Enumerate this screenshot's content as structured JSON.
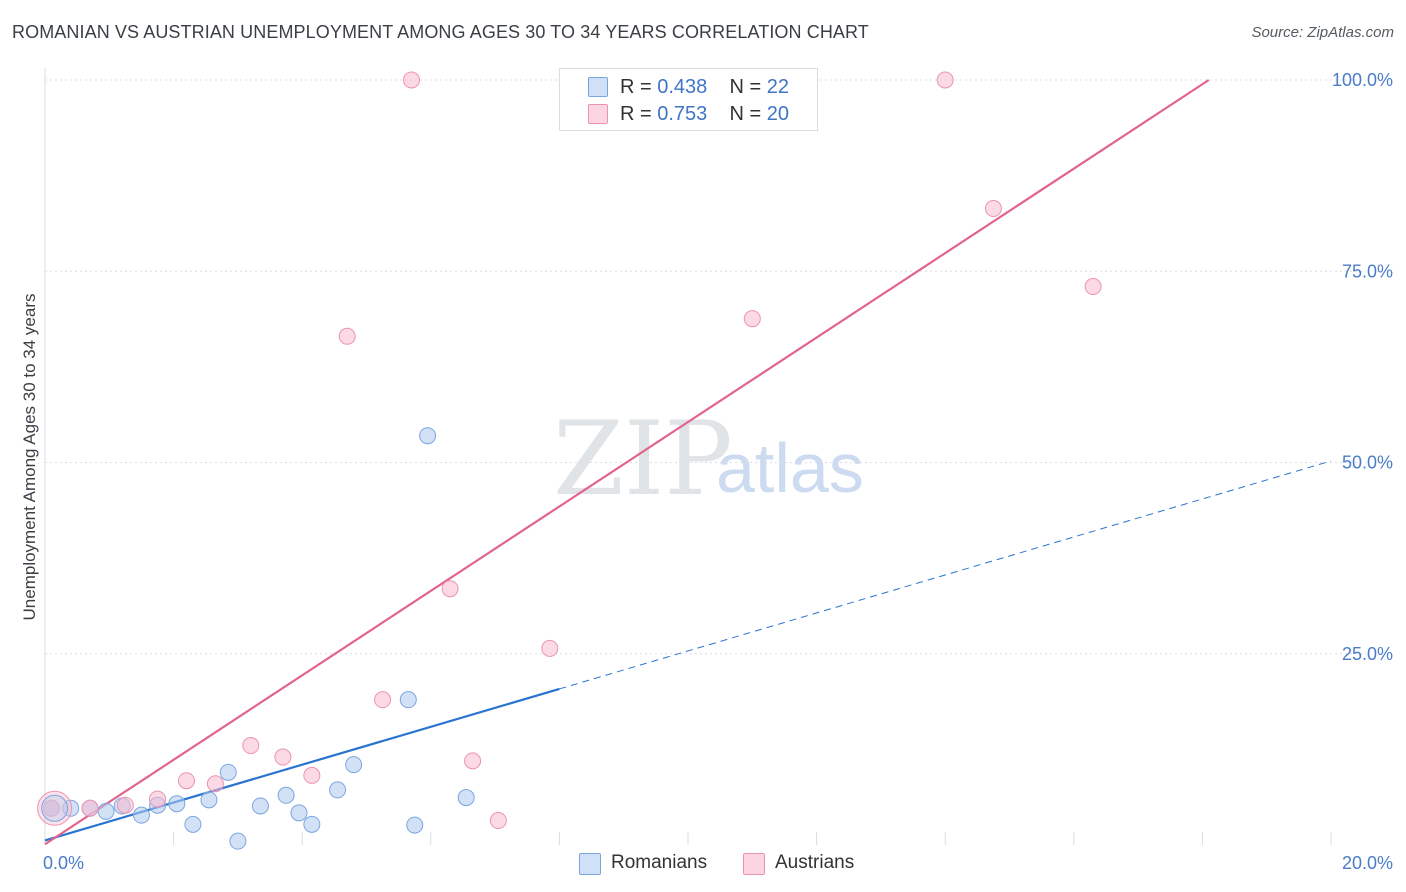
{
  "header": {
    "title": "ROMANIAN VS AUSTRIAN UNEMPLOYMENT AMONG AGES 30 TO 34 YEARS CORRELATION CHART",
    "source": "Source: ZipAtlas.com"
  },
  "watermark": {
    "zip": "ZIP",
    "atlas": "atlas"
  },
  "legend": {
    "rows": [
      {
        "r_label": "R = ",
        "r_value": "0.438",
        "n_label": "N = ",
        "n_value": "22",
        "color": "#aec9ef"
      },
      {
        "r_label": "R = ",
        "r_value": "0.753",
        "n_label": "N = ",
        "n_value": "20",
        "color": "#f7bcd0"
      }
    ]
  },
  "bottom_legend": {
    "romanians": "Romanians",
    "austrians": "Austrians"
  },
  "colors": {
    "blue_fill": "#aec9ef",
    "blue_stroke": "#7aa6e0",
    "blue_line": "#2a74d1",
    "pink_fill": "#f7bcd0",
    "pink_stroke": "#ec93b1",
    "pink_line": "#e2648e",
    "grid": "#d9dde2",
    "tick": "#4a7cc9"
  },
  "chart_data": {
    "type": "scatter",
    "title": "ROMANIAN VS AUSTRIAN UNEMPLOYMENT AMONG AGES 30 TO 34 YEARS CORRELATION CHART",
    "xlabel": "",
    "ylabel": "Unemployment Among Ages 30 to 34 years",
    "xlim": [
      0,
      20
    ],
    "ylim": [
      0,
      100
    ],
    "x_tick_labels": [
      "0.0%",
      "20.0%"
    ],
    "y_tick_labels": [
      "100.0%",
      "75.0%",
      "50.0%",
      "25.0%"
    ],
    "y_tick_values": [
      100,
      75,
      50,
      25
    ],
    "grid": true,
    "series": [
      {
        "name": "Romanians",
        "r": 0.438,
        "n": 22,
        "points": [
          [
            0.1,
            4.8
          ],
          [
            0.4,
            4.8
          ],
          [
            0.7,
            4.8
          ],
          [
            0.95,
            4.4
          ],
          [
            1.2,
            5.1
          ],
          [
            1.5,
            3.9
          ],
          [
            1.75,
            5.2
          ],
          [
            2.05,
            5.4
          ],
          [
            2.3,
            2.7
          ],
          [
            2.55,
            5.9
          ],
          [
            2.85,
            9.5
          ],
          [
            3.0,
            0.5
          ],
          [
            3.35,
            5.1
          ],
          [
            3.75,
            6.5
          ],
          [
            3.95,
            4.2
          ],
          [
            4.15,
            2.7
          ],
          [
            4.55,
            7.2
          ],
          [
            4.8,
            10.5
          ],
          [
            5.65,
            19.0
          ],
          [
            5.75,
            2.6
          ],
          [
            5.95,
            53.5
          ],
          [
            6.55,
            6.2
          ]
        ],
        "trend_solid": [
          [
            0,
            0.6
          ],
          [
            8,
            20.4
          ]
        ],
        "trend_dashed": [
          [
            8,
            20.4
          ],
          [
            20,
            50.2
          ]
        ]
      },
      {
        "name": "Austrians",
        "r": 0.753,
        "n": 20,
        "points": [
          [
            0.1,
            4.8
          ],
          [
            0.7,
            4.8
          ],
          [
            1.25,
            5.2
          ],
          [
            1.75,
            6.0
          ],
          [
            2.2,
            8.4
          ],
          [
            2.65,
            8.0
          ],
          [
            3.2,
            13.0
          ],
          [
            3.7,
            11.5
          ],
          [
            4.15,
            9.1
          ],
          [
            4.7,
            66.5
          ],
          [
            5.25,
            19.0
          ],
          [
            5.7,
            100.0
          ],
          [
            6.3,
            33.5
          ],
          [
            6.65,
            11.0
          ],
          [
            7.05,
            3.2
          ],
          [
            7.85,
            25.7
          ],
          [
            11.0,
            68.8
          ],
          [
            14.0,
            100.0
          ],
          [
            14.75,
            83.2
          ],
          [
            16.3,
            73.0
          ]
        ],
        "trend_solid": [
          [
            0,
            0.1
          ],
          [
            18.1,
            100.0
          ]
        ]
      }
    ]
  }
}
